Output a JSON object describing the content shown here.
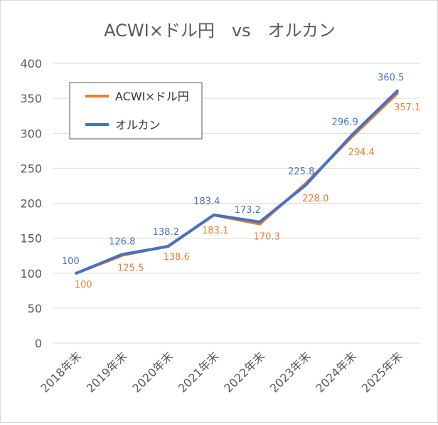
{
  "chart_data": {
    "type": "line",
    "title": "ACWI×ドル円　vs　オルカン",
    "categories": [
      "2018年末",
      "2019年末",
      "2020年末",
      "2021年末",
      "2022年末",
      "2023年末",
      "2024年末",
      "2025年末"
    ],
    "series": [
      {
        "name": "ACWI×ドル円",
        "color": "#ED7D31",
        "values": [
          100,
          125.5,
          138.6,
          183.1,
          170.3,
          228.0,
          294.4,
          357.1
        ],
        "labels": [
          "100",
          "125.5",
          "138.6",
          "183.1",
          "170.3",
          "228.0",
          "294.4",
          "357.1"
        ]
      },
      {
        "name": "オルカン",
        "color": "#4472C4",
        "values": [
          100,
          126.8,
          138.2,
          183.4,
          173.2,
          225.8,
          296.9,
          360.5
        ],
        "labels": [
          "100",
          "126.8",
          "138.2",
          "183.4",
          "173.2",
          "225.8",
          "296.9",
          "360.5"
        ]
      }
    ],
    "ylim": [
      0,
      400
    ],
    "yticks": [
      0,
      50,
      100,
      150,
      200,
      250,
      300,
      350,
      400
    ],
    "grid": true,
    "legend_position": "top-left inside"
  }
}
